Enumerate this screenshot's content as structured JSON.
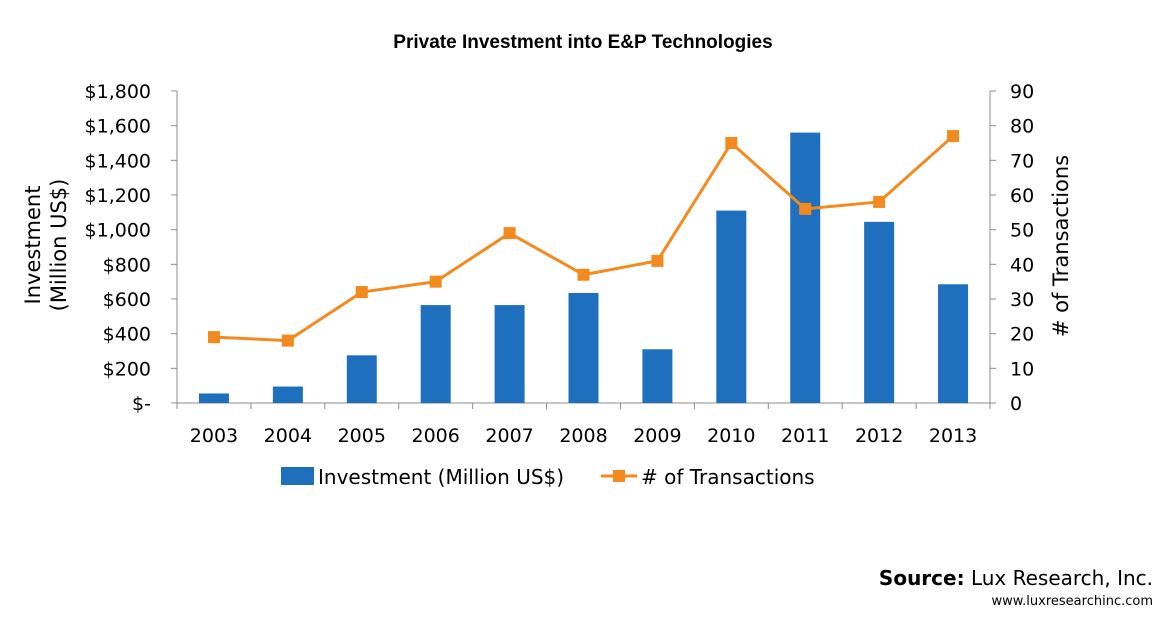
{
  "chart_data": {
    "type": "bar+line",
    "title": "Private Investment into E&P Technologies",
    "categories": [
      "2003",
      "2004",
      "2005",
      "2006",
      "2007",
      "2008",
      "2009",
      "2010",
      "2011",
      "2012",
      "2013"
    ],
    "series": [
      {
        "name": "Investment (Million US$)",
        "type": "bar",
        "axis": "left",
        "color": "#1f6fbf",
        "values": [
          55,
          95,
          275,
          565,
          565,
          635,
          310,
          1110,
          1560,
          1045,
          685
        ]
      },
      {
        "name": "# of Transactions",
        "type": "line",
        "axis": "right",
        "color": "#f28a1e",
        "values": [
          19,
          18,
          32,
          35,
          49,
          37,
          41,
          75,
          56,
          58,
          77
        ]
      }
    ],
    "ylabel_left": "Investment (Million US$)",
    "ylabel_left_lines": [
      "Investment",
      "(Million US$)"
    ],
    "ylabel_right": "# of Transactions",
    "ylim_left": [
      0,
      1800
    ],
    "ylim_right": [
      0,
      90
    ],
    "yticks_left": [
      "$-",
      "$200",
      "$400",
      "$600",
      "$800",
      "$1,000",
      "$1,200",
      "$1,400",
      "$1,600",
      "$1,800"
    ],
    "yticks_right": [
      "0",
      "10",
      "20",
      "30",
      "40",
      "50",
      "60",
      "70",
      "80",
      "90"
    ],
    "legend_position": "bottom",
    "grid": false
  },
  "source": {
    "label": "Source",
    "separator": ":",
    "name": " Lux Research, Inc.",
    "url": "www.luxresearchinc.com"
  }
}
